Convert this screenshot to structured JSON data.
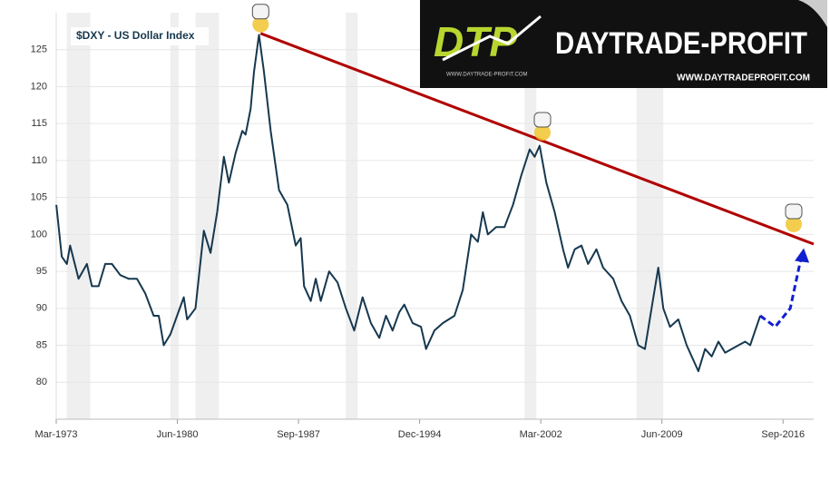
{
  "chart_data": {
    "type": "line",
    "x": [
      1973.17,
      1973.5,
      1973.8,
      1974.0,
      1974.5,
      1975.0,
      1975.3,
      1975.7,
      1976.1,
      1976.5,
      1977.0,
      1977.5,
      1978.0,
      1978.5,
      1979.0,
      1979.3,
      1979.6,
      1980.0,
      1980.4,
      1980.8,
      1981.0,
      1981.5,
      1982.0,
      1982.4,
      1982.8,
      1983.2,
      1983.5,
      1983.9,
      1984.3,
      1984.5,
      1984.8,
      1985.0,
      1985.3,
      1985.6,
      1986.0,
      1986.5,
      1987.0,
      1987.5,
      1987.8,
      1988.0,
      1988.4,
      1988.7,
      1989.0,
      1989.5,
      1990.0,
      1990.5,
      1991.0,
      1991.5,
      1992.0,
      1992.5,
      1992.9,
      1993.3,
      1993.7,
      1994.0,
      1994.5,
      1995.0,
      1995.3,
      1995.8,
      1996.3,
      1997.0,
      1997.5,
      1998.0,
      1998.4,
      1998.7,
      1999.0,
      1999.5,
      2000.0,
      2000.5,
      2001.0,
      2001.5,
      2001.8,
      2002.1,
      2002.5,
      2003.0,
      2003.5,
      2003.8,
      2004.2,
      2004.6,
      2005.0,
      2005.5,
      2005.9,
      2006.5,
      2007.0,
      2007.5,
      2008.0,
      2008.4,
      2008.8,
      2009.2,
      2009.5,
      2009.9,
      2010.4,
      2010.9,
      2011.6,
      2012.0,
      2012.4,
      2012.8,
      2013.2,
      2013.6,
      2014.0,
      2014.4,
      2014.7,
      2015.0,
      2015.3
    ],
    "series": [
      {
        "name": "$DXY - US Dollar Index",
        "color": "#16384f",
        "values": [
          104,
          97,
          96,
          98.5,
          94,
          96,
          93,
          93,
          96,
          96,
          94.5,
          94,
          94,
          92,
          89,
          89,
          85,
          86.5,
          89,
          91.5,
          88.5,
          90,
          100.5,
          97.5,
          103,
          110.5,
          107,
          111,
          114,
          113.5,
          117,
          122,
          127,
          122,
          114,
          106,
          104,
          98.5,
          99.5,
          93,
          91,
          94,
          91,
          95,
          93.5,
          90,
          87,
          91.5,
          88,
          86,
          89,
          87,
          89.5,
          90.5,
          88,
          87.5,
          84.5,
          87,
          88,
          89,
          92.5,
          100,
          99,
          103,
          100,
          101,
          101,
          104,
          108,
          111.5,
          110.5,
          112,
          107,
          103,
          98,
          95.5,
          98,
          98.5,
          96,
          98,
          95.5,
          94,
          91,
          89,
          85,
          84.5,
          90,
          95.5,
          90,
          87.5,
          88.5,
          85,
          81.5,
          84.5,
          83.5,
          85.5,
          84,
          84.5,
          85,
          85.5,
          85,
          87,
          89
        ]
      }
    ],
    "trendline": {
      "x": [
        1985.4,
        2018.5
      ],
      "values": [
        127.2,
        98.7
      ],
      "color": "#b00000"
    },
    "forecast": {
      "x": [
        2015.3,
        2016.2,
        2017.1,
        2017.8
      ],
      "values": [
        89,
        87.5,
        90,
        97.4
      ],
      "color": "#1020d0"
    },
    "recessions": [
      [
        1973.8,
        1975.2
      ],
      [
        1980.0,
        1980.5
      ],
      [
        1981.5,
        1982.9
      ],
      [
        1990.5,
        1991.2
      ],
      [
        2001.2,
        2001.9
      ],
      [
        2007.9,
        2009.5
      ]
    ],
    "xlim": [
      1973.167,
      2018.5
    ],
    "ylim": [
      75,
      130
    ],
    "yticks": [
      80,
      85,
      90,
      95,
      100,
      105,
      110,
      115,
      120,
      125
    ],
    "xticks": [
      {
        "value": 1973.167,
        "label": "Mar-1973"
      },
      {
        "value": 1980.417,
        "label": "Jun-1980"
      },
      {
        "value": 1987.667,
        "label": "Sep-1987"
      },
      {
        "value": 1994.917,
        "label": "Dec-1994"
      },
      {
        "value": 2002.167,
        "label": "Mar-2002"
      },
      {
        "value": 2009.417,
        "label": "Jun-2009"
      },
      {
        "value": 2016.667,
        "label": "Sep-2016"
      }
    ],
    "grid": true,
    "logo": {
      "mark": "DTP",
      "name": "DAYTRADE-PROFIT",
      "url": "WWW.DAYTRADEPROFIT.COM",
      "small_url": "WWW.DAYTRADE-PROFIT.COM"
    }
  }
}
